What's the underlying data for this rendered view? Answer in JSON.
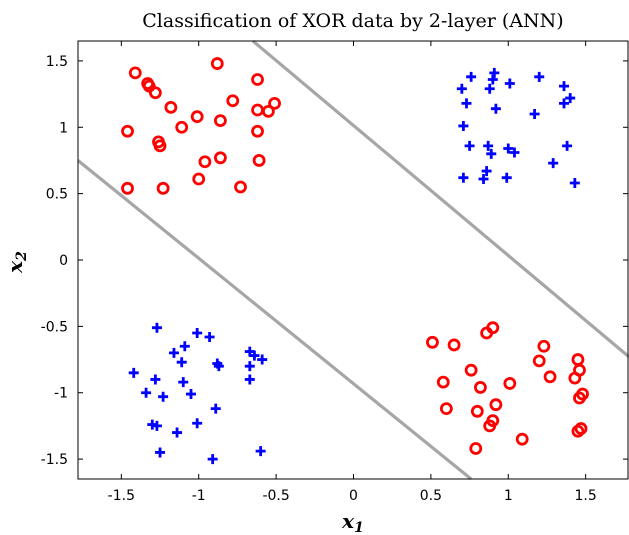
{
  "chart_data": {
    "type": "scatter",
    "title": "Classification of XOR data by 2-layer (ANN)",
    "xlabel": "x",
    "xlabel_sub": "1",
    "ylabel": "x",
    "ylabel_sub": "2",
    "xlim": [
      -1.78,
      1.78
    ],
    "ylim": [
      -1.65,
      1.65
    ],
    "xticks": [
      -1.5,
      -1,
      -0.5,
      0,
      0.5,
      1,
      1.5
    ],
    "xtick_labels": [
      "-1.5",
      "-1",
      "-0.5",
      "0",
      "0.5",
      "1",
      "1.5"
    ],
    "yticks": [
      -1.5,
      -1,
      -0.5,
      0,
      0.5,
      1,
      1.5
    ],
    "ytick_labels": [
      "-1.5",
      "-1",
      "-0.5",
      "0",
      "0.5",
      "1",
      "1.5"
    ],
    "grid": false,
    "colors": {
      "circle_class": "#ff0000",
      "plus_class": "#0000ff",
      "boundary": "#a6a6a6"
    },
    "boundaries": [
      {
        "x": [
          -1.78,
          0.76
        ],
        "y": [
          0.75,
          -1.65
        ]
      },
      {
        "x": [
          -0.65,
          1.78
        ],
        "y": [
          1.65,
          -0.73
        ]
      }
    ],
    "series": [
      {
        "marker": "circle",
        "points": [
          [
            -1.41,
            1.41
          ],
          [
            -1.33,
            1.33
          ],
          [
            -1.32,
            1.31
          ],
          [
            -1.28,
            1.26
          ],
          [
            -1.18,
            1.15
          ],
          [
            -1.11,
            1.0
          ],
          [
            -1.01,
            1.08
          ],
          [
            -0.88,
            1.48
          ],
          [
            -0.78,
            1.2
          ],
          [
            -0.62,
            1.36
          ],
          [
            -0.62,
            1.13
          ],
          [
            -0.62,
            0.97
          ],
          [
            -0.86,
            1.05
          ],
          [
            -0.55,
            1.12
          ],
          [
            -0.51,
            1.18
          ],
          [
            -1.46,
            0.97
          ],
          [
            -1.26,
            0.89
          ],
          [
            -1.25,
            0.86
          ],
          [
            -0.96,
            0.74
          ],
          [
            -0.86,
            0.77
          ],
          [
            -0.61,
            0.75
          ],
          [
            -1.46,
            0.54
          ],
          [
            -1.23,
            0.54
          ],
          [
            -1.0,
            0.61
          ],
          [
            -0.73,
            0.55
          ],
          [
            0.51,
            -0.62
          ],
          [
            0.65,
            -0.64
          ],
          [
            0.86,
            -0.55
          ],
          [
            0.9,
            -0.51
          ],
          [
            1.23,
            -0.65
          ],
          [
            1.2,
            -0.76
          ],
          [
            1.45,
            -0.75
          ],
          [
            1.46,
            -0.83
          ],
          [
            0.58,
            -0.92
          ],
          [
            0.76,
            -0.83
          ],
          [
            0.82,
            -0.96
          ],
          [
            1.01,
            -0.93
          ],
          [
            1.27,
            -0.88
          ],
          [
            1.43,
            -0.89
          ],
          [
            1.46,
            -1.04
          ],
          [
            1.48,
            -1.01
          ],
          [
            0.6,
            -1.12
          ],
          [
            0.8,
            -1.14
          ],
          [
            0.92,
            -1.09
          ],
          [
            0.9,
            -1.21
          ],
          [
            0.88,
            -1.25
          ],
          [
            1.45,
            -1.29
          ],
          [
            1.47,
            -1.27
          ],
          [
            1.09,
            -1.35
          ],
          [
            0.79,
            -1.42
          ]
        ]
      },
      {
        "marker": "plus",
        "points": [
          [
            0.76,
            1.38
          ],
          [
            0.91,
            1.41
          ],
          [
            0.9,
            1.36
          ],
          [
            1.2,
            1.38
          ],
          [
            0.7,
            1.29
          ],
          [
            0.88,
            1.29
          ],
          [
            1.01,
            1.33
          ],
          [
            1.36,
            1.31
          ],
          [
            0.73,
            1.18
          ],
          [
            1.36,
            1.18
          ],
          [
            1.4,
            1.22
          ],
          [
            0.92,
            1.14
          ],
          [
            1.17,
            1.1
          ],
          [
            0.71,
            1.01
          ],
          [
            0.75,
            0.86
          ],
          [
            0.87,
            0.86
          ],
          [
            0.89,
            0.8
          ],
          [
            1.0,
            0.84
          ],
          [
            1.04,
            0.81
          ],
          [
            1.38,
            0.86
          ],
          [
            1.29,
            0.73
          ],
          [
            0.86,
            0.67
          ],
          [
            0.71,
            0.62
          ],
          [
            0.84,
            0.61
          ],
          [
            0.99,
            0.62
          ],
          [
            1.43,
            0.58
          ],
          [
            -1.27,
            -0.51
          ],
          [
            -1.01,
            -0.55
          ],
          [
            -0.93,
            -0.58
          ],
          [
            -1.16,
            -0.7
          ],
          [
            -1.09,
            -0.65
          ],
          [
            -0.67,
            -0.69
          ],
          [
            -0.64,
            -0.72
          ],
          [
            -0.59,
            -0.75
          ],
          [
            -1.11,
            -0.77
          ],
          [
            -0.88,
            -0.78
          ],
          [
            -0.87,
            -0.8
          ],
          [
            -0.67,
            -0.8
          ],
          [
            -1.42,
            -0.85
          ],
          [
            -1.28,
            -0.9
          ],
          [
            -1.1,
            -0.92
          ],
          [
            -0.67,
            -0.9
          ],
          [
            -1.34,
            -1.0
          ],
          [
            -1.23,
            -1.03
          ],
          [
            -1.05,
            -1.01
          ],
          [
            -1.3,
            -1.24
          ],
          [
            -1.27,
            -1.25
          ],
          [
            -1.01,
            -1.23
          ],
          [
            -0.89,
            -1.12
          ],
          [
            -1.14,
            -1.3
          ],
          [
            -1.25,
            -1.45
          ],
          [
            -0.91,
            -1.5
          ],
          [
            -0.6,
            -1.44
          ]
        ]
      }
    ]
  }
}
